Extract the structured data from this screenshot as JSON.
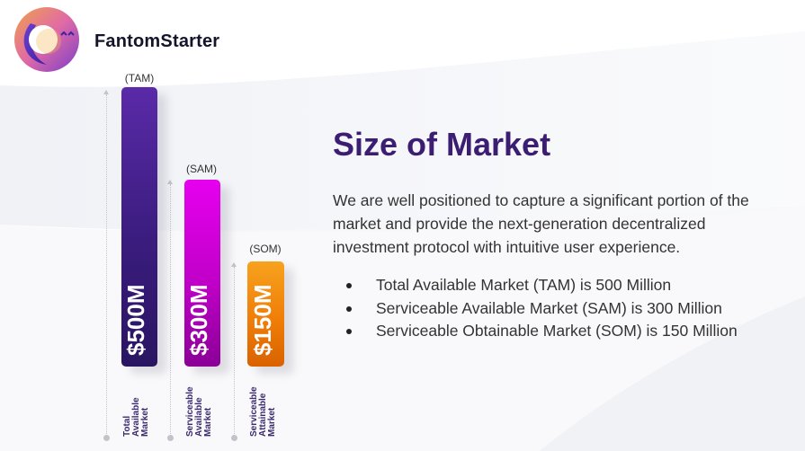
{
  "brand": {
    "name": "FantomStarter"
  },
  "slide": {
    "title": "Size of Market",
    "description": "We are well positioned to capture a significant portion of the market and provide the next-generation decentralized investment protocol with intuitive  user experience.",
    "bullets": [
      "Total Available Market (TAM) is 500 Million",
      "Serviceable Available Market (SAM) is 300 Million",
      "Serviceable Obtainable Market (SOM) is 150 Million"
    ]
  },
  "bars": [
    {
      "tag": "(TAM)",
      "value_text": "$500M",
      "label_lines": [
        "Total",
        "Available",
        "Market"
      ]
    },
    {
      "tag": "(SAM)",
      "value_text": "$300M",
      "label_lines": [
        "Serviceable",
        "Available",
        "Market"
      ]
    },
    {
      "tag": "(SOM)",
      "value_text": "$150M",
      "label_lines": [
        "Serviceable",
        "Attainable",
        "Market"
      ]
    }
  ],
  "chart_data": {
    "type": "bar",
    "categories": [
      "TAM",
      "SAM",
      "SOM"
    ],
    "values": [
      500,
      300,
      150
    ],
    "colors": [
      "#4a2494",
      "#d100d8",
      "#f07e08"
    ]
  },
  "colors": {
    "title": "#3b1e72",
    "tam": "#4a2494",
    "sam": "#d100d8",
    "som": "#f07e08"
  }
}
